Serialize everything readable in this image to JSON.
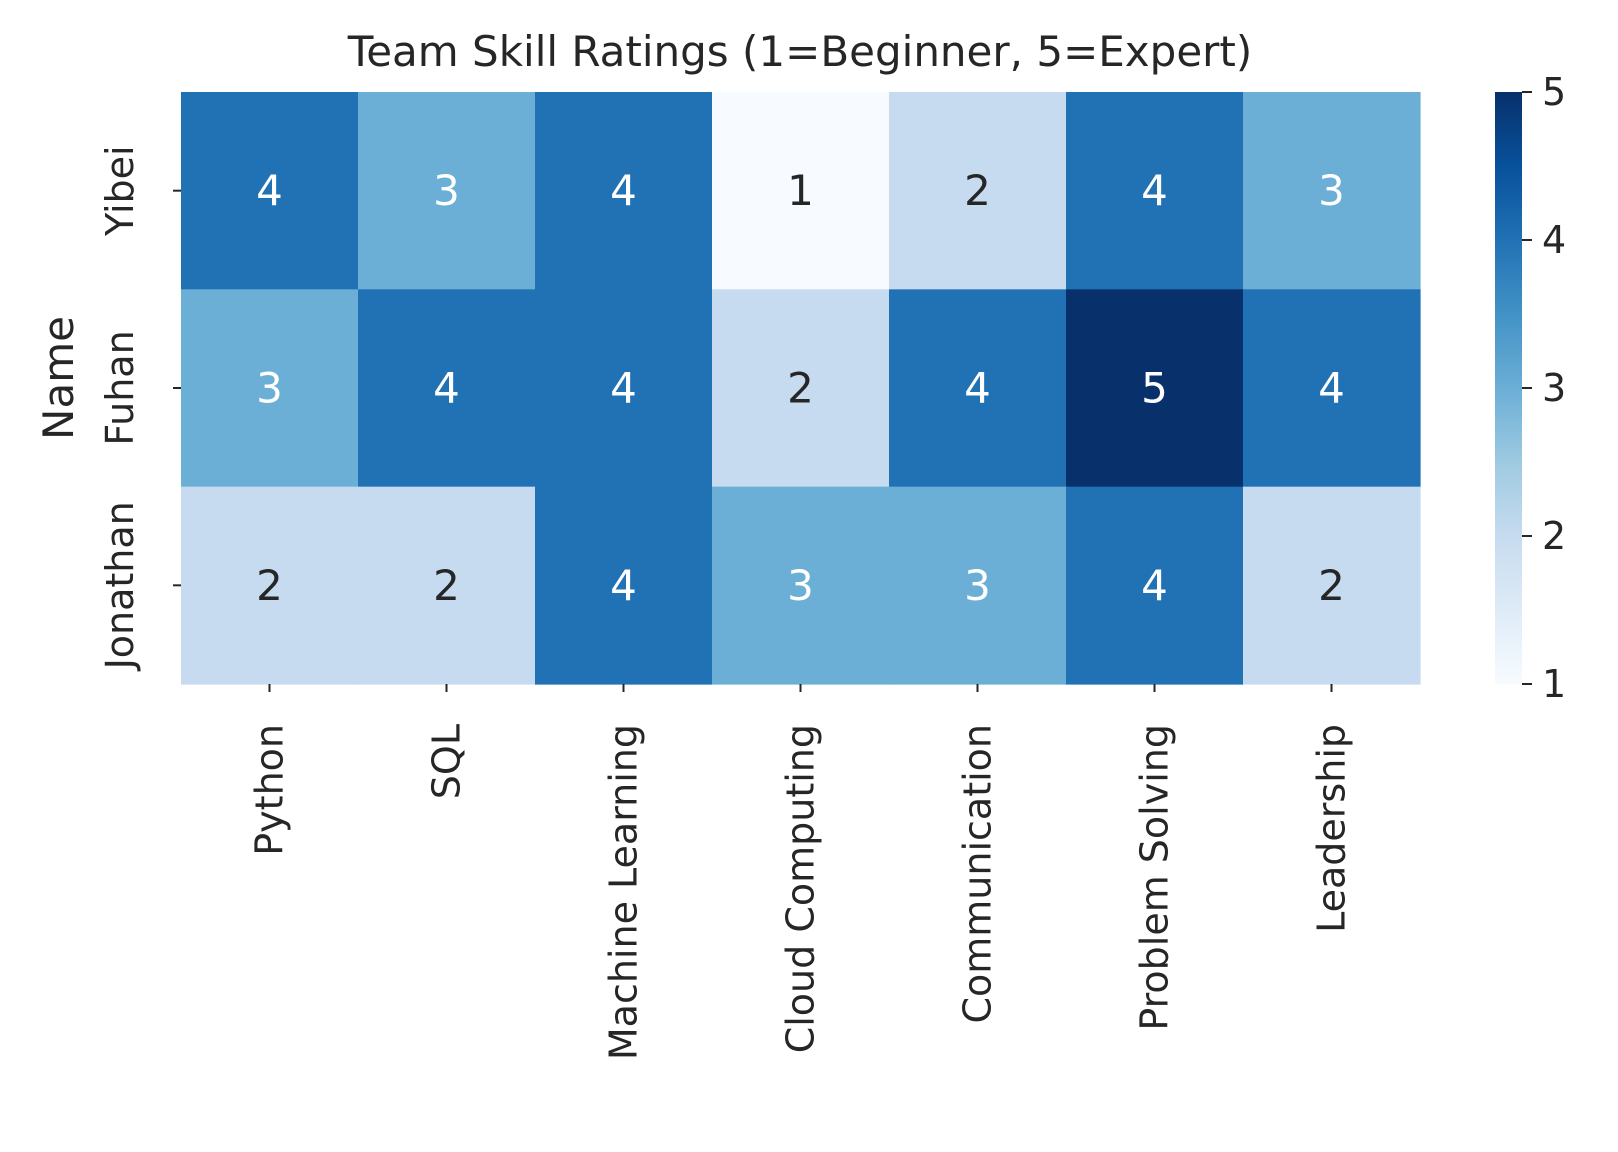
{
  "chart_data": {
    "type": "heatmap",
    "title": "Team Skill Ratings (1=Beginner, 5=Expert)",
    "xlabel": "",
    "ylabel": "Name",
    "x_categories": [
      "Python",
      "SQL",
      "Machine Learning",
      "Cloud Computing",
      "Communication",
      "Problem Solving",
      "Leadership"
    ],
    "y_categories": [
      "Yibei",
      "Fuhan",
      "Jonathan"
    ],
    "values": [
      [
        4,
        3,
        4,
        1,
        2,
        4,
        3
      ],
      [
        3,
        4,
        4,
        2,
        4,
        5,
        4
      ],
      [
        2,
        2,
        4,
        3,
        3,
        4,
        2
      ]
    ],
    "annotated": true,
    "colormap": "Blues",
    "colorbar": {
      "min": 1,
      "max": 5,
      "ticks": [
        "1",
        "2",
        "3",
        "4",
        "5"
      ]
    },
    "colors": {
      "1": "#f7fbff",
      "2": "#c6dbef",
      "3": "#6baed6",
      "4": "#2171b5",
      "5": "#08306b",
      "dark_text": "#262626",
      "light_text": "#ffffff"
    }
  }
}
